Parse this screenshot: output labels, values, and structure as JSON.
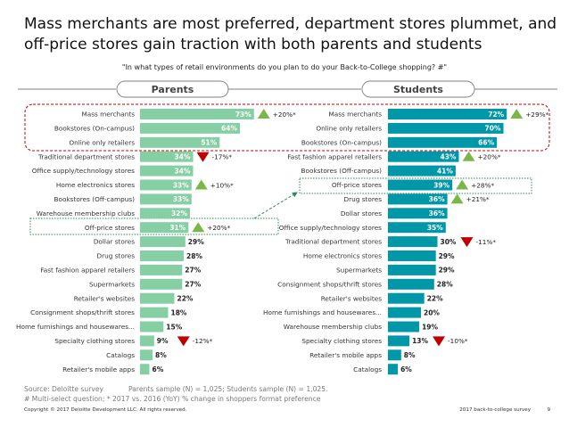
{
  "title": "Mass merchants are most preferred, department stores plummet, and off-price stores gain traction with both parents and students",
  "subtitle": "\"In what types of retail environments do you plan to do your Back-to-College shopping? #\"",
  "colors": {
    "parents": "#86cfa4",
    "students": "#0097a9",
    "up": "#7ab648",
    "down": "#c00000",
    "highlight": "#c00000",
    "offprice": "#2e8b57",
    "header_border": "#7f7f7f"
  },
  "chart_data": [
    {
      "type": "bar",
      "orientation": "horizontal",
      "title": "Parents",
      "unit": "%",
      "xlim": [
        0,
        100
      ],
      "categories": [
        "Mass merchants",
        "Bookstores (On-campus)",
        "Online only retailers",
        "Traditional department stores",
        "Office supply/technology stores",
        "Home electronics stores",
        "Bookstores (Off-campus)",
        "Warehouse membership clubs",
        "Off-price stores",
        "Dollar stores",
        "Drug stores",
        "Fast fashion apparel retailers",
        "Supermarkets",
        "Retailer's websites",
        "Consignment shops/thrift stores",
        "Home furnishings and housewares...",
        "Specialty clothing stores",
        "Catalogs",
        "Retailer's mobile apps"
      ],
      "values": [
        73,
        64,
        51,
        34,
        34,
        33,
        33,
        32,
        31,
        29,
        28,
        27,
        27,
        22,
        18,
        15,
        9,
        8,
        6
      ],
      "labels": [
        "73%",
        "64%",
        "51%",
        "34%",
        "34%",
        "33%",
        "33%",
        "32%",
        "31%",
        "29%",
        "28%",
        "27%",
        "27%",
        "22%",
        "18%",
        "15%",
        "9%",
        "8%",
        "6%"
      ],
      "yoy": [
        {
          "category": "Mass merchants",
          "direction": "up",
          "label": "+20%*"
        },
        {
          "category": "Traditional department stores",
          "direction": "down",
          "label": "-17%*"
        },
        {
          "category": "Home electronics stores",
          "direction": "up",
          "label": "+10%*"
        },
        {
          "category": "Off-price stores",
          "direction": "up",
          "label": "+20%*"
        },
        {
          "category": "Specialty clothing stores",
          "direction": "down",
          "label": "-12%*"
        }
      ]
    },
    {
      "type": "bar",
      "orientation": "horizontal",
      "title": "Students",
      "unit": "%",
      "xlim": [
        0,
        100
      ],
      "categories": [
        "Mass merchants",
        "Online only retailers",
        "Bookstores (On-campus)",
        "Fast fashion apparel retailers",
        "Bookstores (Off-campus)",
        "Off-price stores",
        "Drug stores",
        "Dollar stores",
        "Office supply/technology stores",
        "Traditional department stores",
        "Home electronics stores",
        "Supermarkets",
        "Consignment shops/thrift stores",
        "Retailer's websites",
        "Home furnishings and housewares...",
        "Warehouse membership clubs",
        "Specialty clothing stores",
        "Retailer's mobile apps",
        "Catalogs"
      ],
      "values": [
        72,
        70,
        66,
        43,
        41,
        39,
        36,
        36,
        35,
        30,
        29,
        29,
        28,
        22,
        20,
        19,
        13,
        8,
        6
      ],
      "labels": [
        "72%",
        "70%",
        "66%",
        "43%",
        "41%",
        "39%",
        "36%",
        "36%",
        "35%",
        "30%",
        "29%",
        "29%",
        "28%",
        "22%",
        "20%",
        "19%",
        "13%",
        "8%",
        "6%"
      ],
      "yoy": [
        {
          "category": "Mass merchants",
          "direction": "up",
          "label": "+29%*"
        },
        {
          "category": "Fast fashion apparel retailers",
          "direction": "up",
          "label": "+20%*"
        },
        {
          "category": "Off-price stores",
          "direction": "up",
          "label": "+28%*"
        },
        {
          "category": "Drug stores",
          "direction": "up",
          "label": "+21%*"
        },
        {
          "category": "Traditional department stores",
          "direction": "down",
          "label": "-11%*"
        },
        {
          "category": "Specialty clothing stores",
          "direction": "down",
          "label": "-10%*"
        }
      ]
    }
  ],
  "source": {
    "text": "Source: Deloitte survey",
    "sample": "Parents sample (N) = 1,025; Students sample (N) = 1,025."
  },
  "footnote": "# Multi-select question; * 2017 vs. 2016 (YoY) % change in shoppers format preference",
  "footer": {
    "copyright": "Copyright © 2017 Deloitte Development LLC. All rights reserved.",
    "report": "2017 back-to-college survey",
    "page": "9"
  }
}
